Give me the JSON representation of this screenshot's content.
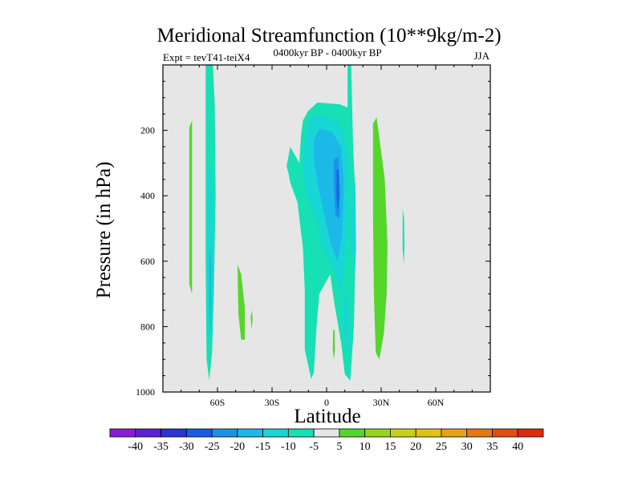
{
  "chart_data": {
    "type": "contour",
    "title": "Meridional Streamfunction (10**9kg/m-2)",
    "left_label": "Expt = tevT41-teiX4",
    "center_label": "0400kyr BP - 0400kyr BP",
    "right_label": "JJA",
    "xlabel": "Latitude",
    "ylabel": "Pressure (in hPa)",
    "xlim": [
      -90,
      90
    ],
    "ylim": [
      1000,
      0
    ],
    "x_ticks": [
      {
        "value": -60,
        "label": "60S"
      },
      {
        "value": -30,
        "label": "30S"
      },
      {
        "value": 0,
        "label": "0"
      },
      {
        "value": 30,
        "label": "30N"
      },
      {
        "value": 60,
        "label": "60N"
      }
    ],
    "y_ticks": [
      {
        "value": 200,
        "label": "200"
      },
      {
        "value": 400,
        "label": "400"
      },
      {
        "value": 600,
        "label": "600"
      },
      {
        "value": 800,
        "label": "800"
      },
      {
        "value": 1000,
        "label": "1000"
      }
    ],
    "background_color": "#e6e6e6",
    "colorbar": {
      "levels": [
        -40,
        -35,
        -30,
        -25,
        -20,
        -15,
        -10,
        -5,
        5,
        10,
        15,
        20,
        25,
        30,
        35,
        40
      ],
      "labels": [
        "-40",
        "-35",
        "-30",
        "-25",
        "-20",
        "-15",
        "-10",
        "-5",
        "5",
        "10",
        "15",
        "20",
        "25",
        "30",
        "35",
        "40"
      ],
      "colors": [
        "#8a1ad8",
        "#5f1ed8",
        "#2b34d4",
        "#1a5ee6",
        "#1993e6",
        "#1bb8e8",
        "#18d6d6",
        "#16e0b4",
        "#e6e6e6",
        "#55d62a",
        "#94d61e",
        "#c6d21a",
        "#e0c216",
        "#e8a014",
        "#e67812",
        "#e24e10",
        "#de2a0c"
      ]
    },
    "regions": [
      {
        "name": "contour-60s-column",
        "value": -10,
        "points": [
          [
            -66.5,
            0
          ],
          [
            -62.5,
            0
          ],
          [
            -61.5,
            120
          ],
          [
            -61,
            400
          ],
          [
            -62,
            700
          ],
          [
            -63,
            880
          ],
          [
            -64.5,
            965
          ],
          [
            -66,
            900
          ],
          [
            -66.5,
            600
          ],
          [
            -66.5,
            300
          ]
        ]
      },
      {
        "name": "contour-60s-core",
        "value": -15,
        "points": [
          [
            -65,
            320
          ],
          [
            -63,
            320
          ],
          [
            -62.5,
            550
          ],
          [
            -63,
            780
          ],
          [
            -64,
            880
          ],
          [
            -65,
            780
          ],
          [
            -65.3,
            550
          ]
        ]
      },
      {
        "name": "contour-60s-deep",
        "value": -20,
        "points": [
          [
            -64.5,
            580
          ],
          [
            -63.5,
            580
          ],
          [
            -63.5,
            720
          ],
          [
            -64,
            840
          ],
          [
            -64.5,
            720
          ]
        ]
      },
      {
        "name": "contour-tropical-cell",
        "value": -10,
        "points": [
          [
            -22,
            310
          ],
          [
            -21,
            330
          ],
          [
            -20,
            360
          ],
          [
            -16,
            420
          ],
          [
            -13,
            560
          ],
          [
            -12,
            690
          ],
          [
            -12,
            870
          ],
          [
            -8.5,
            960
          ],
          [
            -7,
            940
          ],
          [
            -5.5,
            800
          ],
          [
            -4,
            700
          ],
          [
            2,
            640
          ],
          [
            4,
            720
          ],
          [
            8,
            850
          ],
          [
            10,
            945
          ],
          [
            13,
            965
          ],
          [
            15,
            800
          ],
          [
            16,
            540
          ],
          [
            15.5,
            360
          ],
          [
            14.5,
            240
          ],
          [
            13.5,
            0
          ],
          [
            11.5,
            0
          ],
          [
            11.5,
            130
          ],
          [
            7,
            120
          ],
          [
            -5,
            115
          ],
          [
            -10,
            140
          ],
          [
            -13,
            170
          ],
          [
            -14,
            210
          ],
          [
            -15,
            300
          ],
          [
            -20,
            250
          ]
        ]
      },
      {
        "name": "contour-tropical-minus15",
        "value": -15,
        "points": [
          [
            -12,
            240
          ],
          [
            -9,
            160
          ],
          [
            -3,
            155
          ],
          [
            5,
            170
          ],
          [
            9,
            200
          ],
          [
            12,
            280
          ],
          [
            12,
            400
          ],
          [
            11,
            560
          ],
          [
            8,
            700
          ],
          [
            4,
            620
          ],
          [
            -2,
            560
          ],
          [
            -6,
            460
          ],
          [
            -11,
            400
          ],
          [
            -13,
            320
          ]
        ]
      },
      {
        "name": "contour-tropical-minus20",
        "value": -20,
        "points": [
          [
            -7,
            230
          ],
          [
            -4,
            195
          ],
          [
            3,
            205
          ],
          [
            8,
            250
          ],
          [
            9.5,
            360
          ],
          [
            8.5,
            520
          ],
          [
            6,
            600
          ],
          [
            2,
            540
          ],
          [
            -2,
            440
          ],
          [
            -5,
            360
          ],
          [
            -7,
            290
          ]
        ]
      },
      {
        "name": "contour-tropical-minus25",
        "value": -25,
        "points": [
          [
            4,
            290
          ],
          [
            6.5,
            280
          ],
          [
            7.5,
            380
          ],
          [
            7,
            470
          ],
          [
            5,
            460
          ],
          [
            4,
            380
          ]
        ]
      },
      {
        "name": "contour-tropical-minus30",
        "value": -30,
        "points": [
          [
            5.5,
            320
          ],
          [
            6.5,
            320
          ],
          [
            6.8,
            400
          ],
          [
            6.2,
            450
          ],
          [
            5.5,
            400
          ]
        ]
      },
      {
        "name": "contour-tropical-lower",
        "value": -15,
        "points": [
          [
            9,
            740
          ],
          [
            11,
            690
          ],
          [
            12.5,
            800
          ],
          [
            12,
            880
          ],
          [
            10,
            850
          ]
        ]
      },
      {
        "name": "contour-subtropical-right",
        "value": -15,
        "points": [
          [
            13,
            420
          ],
          [
            15,
            440
          ],
          [
            14.5,
            580
          ],
          [
            13.2,
            560
          ]
        ]
      },
      {
        "name": "contour-25n-core",
        "value": -15,
        "points": [
          [
            14.2,
            360
          ],
          [
            15.8,
            360
          ],
          [
            16.2,
            560
          ],
          [
            15.5,
            650
          ],
          [
            14.6,
            600
          ]
        ]
      },
      {
        "name": "contour-75s-positive",
        "value": 5,
        "points": [
          [
            -75.5,
            190
          ],
          [
            -74,
            170
          ],
          [
            -74,
            700
          ],
          [
            -75.5,
            670
          ]
        ]
      },
      {
        "name": "contour-45s-positive",
        "value": 5,
        "points": [
          [
            -49,
            610
          ],
          [
            -47,
            640
          ],
          [
            -45,
            740
          ],
          [
            -45,
            840
          ],
          [
            -47,
            840
          ],
          [
            -48.5,
            760
          ]
        ]
      },
      {
        "name": "contour-40s-positive",
        "value": 5,
        "points": [
          [
            -41.8,
            770
          ],
          [
            -41,
            750
          ],
          [
            -40.7,
            780
          ],
          [
            -41.2,
            810
          ]
        ]
      },
      {
        "name": "contour-5n-positive",
        "value": 5,
        "points": [
          [
            3.6,
            810
          ],
          [
            4.4,
            810
          ],
          [
            4.6,
            870
          ],
          [
            4,
            900
          ],
          [
            3.4,
            870
          ]
        ]
      },
      {
        "name": "contour-30n-positive",
        "value": 5,
        "points": [
          [
            25.5,
            180
          ],
          [
            27.5,
            160
          ],
          [
            32,
            350
          ],
          [
            33.5,
            550
          ],
          [
            33,
            700
          ],
          [
            31.5,
            820
          ],
          [
            29,
            900
          ],
          [
            27,
            880
          ],
          [
            26,
            700
          ],
          [
            25.5,
            450
          ]
        ]
      },
      {
        "name": "contour-42n-negative",
        "value": -10,
        "points": [
          [
            41.8,
            440
          ],
          [
            42.6,
            470
          ],
          [
            42.8,
            560
          ],
          [
            42.4,
            610
          ],
          [
            41.8,
            560
          ]
        ]
      }
    ]
  }
}
